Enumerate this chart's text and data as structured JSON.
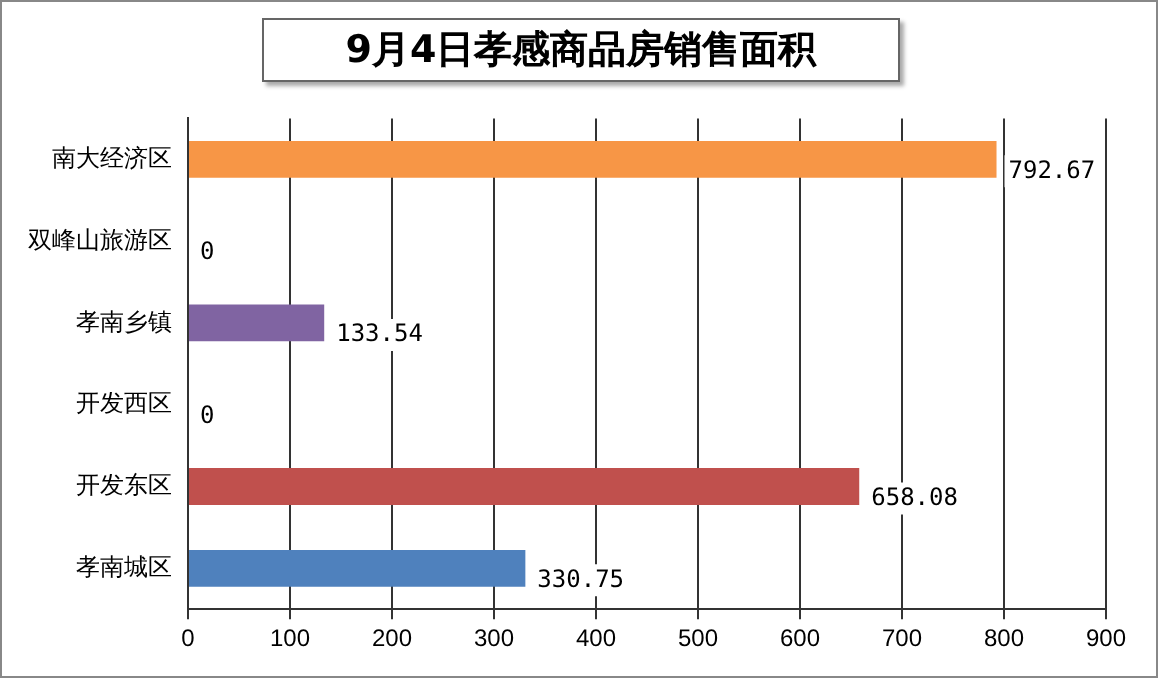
{
  "chart_data": {
    "type": "bar",
    "orientation": "horizontal",
    "title": "9月4日孝感商品房销售面积",
    "categories": [
      "南大经济区",
      "双峰山旅游区",
      "孝南乡镇",
      "开发西区",
      "开发东区",
      "孝南城区"
    ],
    "values": [
      792.67,
      0,
      133.54,
      0,
      658.08,
      330.75
    ],
    "colors": [
      "#f79646",
      "#4bacc6",
      "#8064a2",
      "#9bbb59",
      "#c0504d",
      "#4f81bd"
    ],
    "xlim": [
      0,
      900
    ],
    "xticks": [
      0,
      100,
      200,
      300,
      400,
      500,
      600,
      700,
      800,
      900
    ],
    "grid": "x",
    "data_labels": true
  }
}
